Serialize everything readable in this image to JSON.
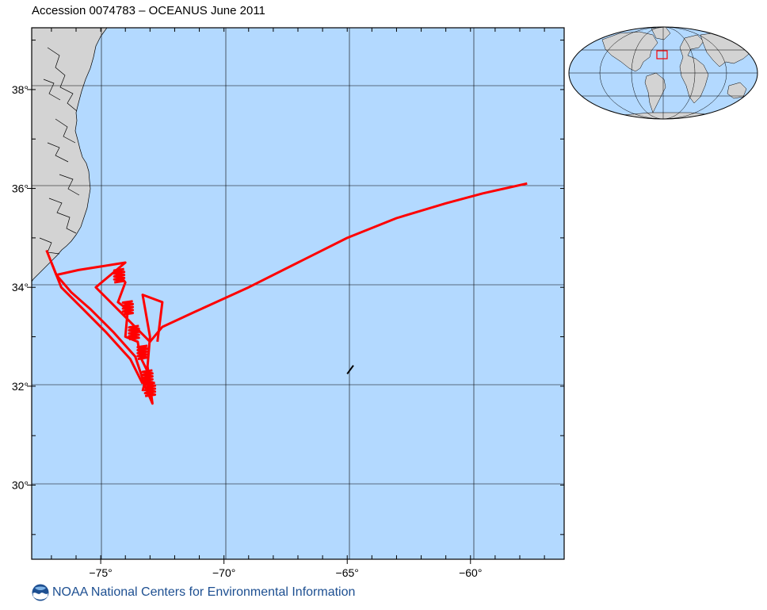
{
  "title": "Accession 0074783 – OCEANUS June 2011",
  "map": {
    "lon_range": [
      -77.8,
      -56.2
    ],
    "lat_range": [
      28.5,
      39.25
    ],
    "lon_ticks": [
      {
        "value": -75,
        "label": "−75°"
      },
      {
        "value": -70,
        "label": "−70°"
      },
      {
        "value": -65,
        "label": "−65°"
      },
      {
        "value": -60,
        "label": "−60°"
      }
    ],
    "lat_ticks": [
      {
        "value": 38,
        "label": "38°"
      },
      {
        "value": 36,
        "label": "36°"
      },
      {
        "value": 34,
        "label": "34°"
      },
      {
        "value": 32,
        "label": "32°"
      },
      {
        "value": 30,
        "label": "30°"
      }
    ],
    "colors": {
      "ocean": "#b3d9ff",
      "land": "#d3d3d3",
      "track": "#ff0000",
      "grid": "#000000"
    },
    "track": [
      [
        -77.2,
        34.75
      ],
      [
        -76.8,
        34.25
      ],
      [
        -75.9,
        34.35
      ],
      [
        -74.0,
        34.5
      ],
      [
        -75.2,
        34.0
      ],
      [
        -73.0,
        32.9
      ],
      [
        -72.5,
        33.2
      ],
      [
        -71.2,
        33.5
      ],
      [
        -69.0,
        34.0
      ],
      [
        -67.0,
        34.5
      ],
      [
        -65.0,
        35.0
      ],
      [
        -63.0,
        35.4
      ],
      [
        -61.0,
        35.7
      ],
      [
        -59.5,
        35.9
      ],
      [
        -57.7,
        36.1
      ]
    ],
    "track_loops": [
      [
        [
          -76.8,
          34.25
        ],
        [
          -76.2,
          33.9
        ],
        [
          -75.4,
          33.55
        ],
        [
          -74.5,
          33.1
        ],
        [
          -73.6,
          32.6
        ],
        [
          -73.2,
          32.0
        ],
        [
          -72.9,
          31.65
        ],
        [
          -73.1,
          32.4
        ],
        [
          -73.0,
          33.0
        ],
        [
          -73.3,
          33.85
        ],
        [
          -72.5,
          33.7
        ],
        [
          -72.7,
          32.9
        ]
      ],
      [
        [
          -77.0,
          34.5
        ],
        [
          -76.6,
          34.0
        ],
        [
          -75.8,
          33.6
        ],
        [
          -74.8,
          33.1
        ],
        [
          -73.8,
          32.55
        ],
        [
          -73.3,
          32.05
        ]
      ],
      [
        [
          -74.4,
          34.35
        ],
        [
          -74.0,
          34.1
        ],
        [
          -74.3,
          33.7
        ],
        [
          -73.9,
          33.55
        ],
        [
          -74.0,
          33.0
        ],
        [
          -73.5,
          32.9
        ],
        [
          -73.4,
          32.6
        ],
        [
          -73.1,
          32.3
        ],
        [
          -73.3,
          31.9
        ]
      ]
    ],
    "small_track": [
      [
        -65.0,
        32.25
      ],
      [
        -64.75,
        32.42
      ]
    ]
  },
  "inset": {
    "highlight_color": "#ff0000"
  },
  "footer": {
    "logo_icon": "noaa-logo-icon",
    "text": "NOAA National Centers for Environmental Information"
  }
}
